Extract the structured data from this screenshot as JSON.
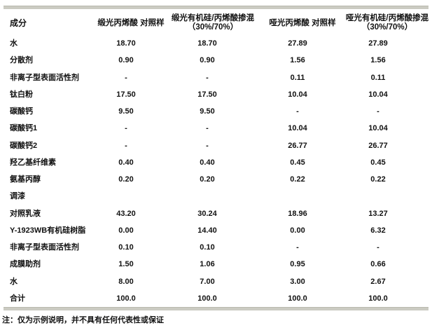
{
  "colors": {
    "rule": "#cbcbc2",
    "text": "#111111"
  },
  "table": {
    "headers": [
      {
        "line1": "成分",
        "line2": ""
      },
      {
        "line1": "缎光丙烯酸 对照样",
        "line2": ""
      },
      {
        "line1": "缎光有机硅/丙烯酸掺混",
        "line2": "（30%/70%）"
      },
      {
        "line1": "哑光丙烯酸 对照样",
        "line2": ""
      },
      {
        "line1": "哑光有机硅/丙烯酸掺混",
        "line2": "（30%/70%）"
      }
    ],
    "rows": [
      {
        "label": "水",
        "values": [
          "18.70",
          "18.70",
          "27.89",
          "27.89"
        ]
      },
      {
        "label": "分散剂",
        "values": [
          "0.90",
          "0.90",
          "1.56",
          "1.56"
        ]
      },
      {
        "label": "非离子型表面活性剂",
        "values": [
          "-",
          "-",
          "0.11",
          "0.11"
        ]
      },
      {
        "label": "钛白粉",
        "values": [
          "17.50",
          "17.50",
          "10.04",
          "10.04"
        ]
      },
      {
        "label": "碳酸钙",
        "values": [
          "9.50",
          "9.50",
          "-",
          "-"
        ]
      },
      {
        "label": "碳酸钙1",
        "values": [
          "-",
          "-",
          "10.04",
          "10.04"
        ]
      },
      {
        "label": "碳酸钙2",
        "values": [
          "-",
          "-",
          "26.77",
          "26.77"
        ]
      },
      {
        "label": "羟乙基纤维素",
        "values": [
          "0.40",
          "0.40",
          "0.45",
          "0.45"
        ]
      },
      {
        "label": "氨基丙醇",
        "values": [
          "0.20",
          "0.20",
          "0.22",
          "0.22"
        ]
      },
      {
        "label": "调漆",
        "values": [
          "",
          "",
          "",
          ""
        ]
      },
      {
        "label": "对照乳液",
        "values": [
          "43.20",
          "30.24",
          "18.96",
          "13.27"
        ]
      },
      {
        "label": "Y-1923WB有机硅树脂",
        "values": [
          "0.00",
          "14.40",
          "0.00",
          "6.32"
        ]
      },
      {
        "label": "非离子型表面活性剂",
        "values": [
          "0.10",
          "0.10",
          "-",
          "-"
        ]
      },
      {
        "label": "成膜助剂",
        "values": [
          "1.50",
          "1.06",
          "0.95",
          "0.66"
        ]
      },
      {
        "label": "水",
        "values": [
          "8.00",
          "7.00",
          "3.00",
          "2.67"
        ]
      },
      {
        "label": "合计",
        "values": [
          "100.0",
          "100.0",
          "100.0",
          "100.0"
        ]
      }
    ]
  },
  "note": "注：仅为示例说明，并不具有任何代表性或保证"
}
